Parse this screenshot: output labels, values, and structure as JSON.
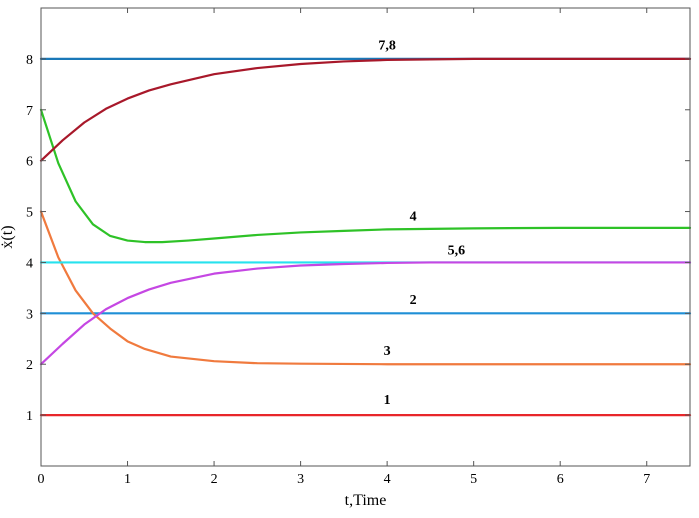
{
  "chart_data": {
    "type": "line",
    "xlabel": "t,Time",
    "ylabel": "ẋ(t)",
    "xlim": [
      0,
      7.5
    ],
    "ylim": [
      0,
      9
    ],
    "xticks": [
      0,
      1,
      2,
      3,
      4,
      5,
      6,
      7
    ],
    "yticks": [
      1,
      2,
      3,
      4,
      5,
      6,
      7,
      8
    ],
    "grid": false,
    "series": [
      {
        "key": "s1",
        "color": "#e8262a",
        "x": [
          0,
          7.5
        ],
        "y": [
          1,
          1
        ]
      },
      {
        "key": "s2",
        "color": "#1f8fd6",
        "x": [
          0,
          7.5
        ],
        "y": [
          3,
          3
        ]
      },
      {
        "key": "s3",
        "color": "#f07a3e",
        "x": [
          0,
          0.2,
          0.4,
          0.6,
          0.8,
          1.0,
          1.2,
          1.5,
          2.0,
          2.5,
          3.0,
          4.0,
          5.0,
          6.0,
          7.5
        ],
        "y": [
          5.0,
          4.1,
          3.45,
          3.0,
          2.7,
          2.45,
          2.3,
          2.15,
          2.06,
          2.02,
          2.01,
          2.0,
          2.0,
          2.0,
          2.0
        ]
      },
      {
        "key": "s4",
        "color": "#2ec227",
        "x": [
          0,
          0.2,
          0.4,
          0.6,
          0.8,
          1.0,
          1.2,
          1.4,
          1.7,
          2.0,
          2.5,
          3.0,
          3.5,
          4.0,
          5.0,
          6.0,
          7.5
        ],
        "y": [
          7.0,
          5.95,
          5.2,
          4.75,
          4.52,
          4.43,
          4.4,
          4.4,
          4.43,
          4.47,
          4.54,
          4.59,
          4.62,
          4.65,
          4.67,
          4.68,
          4.68
        ]
      },
      {
        "key": "s56",
        "color": "#27e2ee",
        "x": [
          0,
          7.5
        ],
        "y": [
          4,
          4
        ]
      },
      {
        "key": "s5c",
        "color": "#c547e3",
        "x": [
          0,
          0.25,
          0.5,
          0.75,
          1.0,
          1.25,
          1.5,
          2.0,
          2.5,
          3.0,
          3.5,
          4.0,
          4.5,
          5.0,
          6.0,
          7.5
        ],
        "y": [
          2.0,
          2.4,
          2.78,
          3.08,
          3.3,
          3.47,
          3.6,
          3.78,
          3.88,
          3.94,
          3.97,
          3.99,
          4.0,
          4.0,
          4.0,
          4.0
        ]
      },
      {
        "key": "s78",
        "color": "#1a78b8",
        "x": [
          0,
          7.5
        ],
        "y": [
          8,
          8
        ]
      },
      {
        "key": "s7c",
        "color": "#a8182a",
        "x": [
          0,
          0.25,
          0.5,
          0.75,
          1.0,
          1.25,
          1.5,
          2.0,
          2.5,
          3.0,
          3.5,
          4.0,
          4.5,
          5.0,
          6.0,
          7.5
        ],
        "y": [
          6.0,
          6.4,
          6.75,
          7.02,
          7.22,
          7.38,
          7.5,
          7.7,
          7.82,
          7.9,
          7.95,
          7.98,
          7.99,
          8.0,
          8.0,
          8.0
        ]
      }
    ],
    "annotations": [
      {
        "text": "1",
        "x": 4.0,
        "y": 1.22
      },
      {
        "text": "2",
        "x": 4.3,
        "y": 3.18
      },
      {
        "text": "3",
        "x": 4.0,
        "y": 2.18
      },
      {
        "text": "4",
        "x": 4.3,
        "y": 4.82
      },
      {
        "text": "5,6",
        "x": 4.8,
        "y": 4.16
      },
      {
        "text": "7,8",
        "x": 4.0,
        "y": 8.18
      }
    ]
  }
}
